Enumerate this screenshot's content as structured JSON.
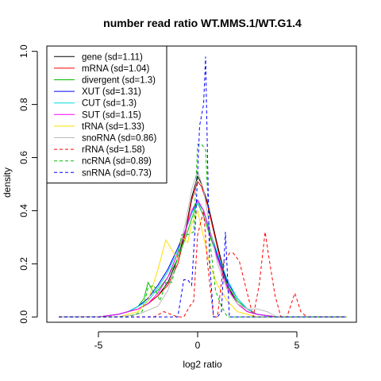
{
  "chart_data": {
    "type": "line",
    "title": "number read ratio WT.MMS.1/WT.G1.4",
    "xlabel": "log2 ratio",
    "ylabel": "density",
    "xlim": [
      -7.6,
      8.0
    ],
    "ylim": [
      -0.02,
      1.02
    ],
    "xticks": [
      -5,
      0,
      5
    ],
    "xtick_labels": [
      "-5",
      "0",
      "5"
    ],
    "yticks": [
      0.0,
      0.2,
      0.4,
      0.6,
      0.8,
      1.0
    ],
    "ytick_labels": [
      "0.0",
      "0.2",
      "0.4",
      "0.6",
      "0.8",
      "1.0"
    ],
    "grid": false,
    "legend_position": "top-left",
    "series": [
      {
        "name": "gene (sd=1.11)",
        "color": "#000000",
        "dash": false,
        "x": [
          -7.0,
          -6.0,
          -5.0,
          -4.0,
          -3.5,
          -3.0,
          -2.5,
          -2.0,
          -1.5,
          -1.0,
          -0.6,
          -0.3,
          0.0,
          0.2,
          0.5,
          1.0,
          1.5,
          2.0,
          2.5,
          3.0,
          4.0,
          5.0,
          6.0,
          7.5
        ],
        "y": [
          0.0,
          0.0,
          0.0,
          0.01,
          0.02,
          0.03,
          0.05,
          0.08,
          0.13,
          0.22,
          0.33,
          0.45,
          0.53,
          0.5,
          0.43,
          0.27,
          0.12,
          0.05,
          0.02,
          0.01,
          0.0,
          0.0,
          0.0,
          0.0
        ]
      },
      {
        "name": "mRNA (sd=1.04)",
        "color": "#ff0000",
        "dash": false,
        "x": [
          -7.0,
          -6.0,
          -5.0,
          -4.0,
          -3.5,
          -3.0,
          -2.5,
          -2.0,
          -1.5,
          -1.0,
          -0.6,
          -0.3,
          0.0,
          0.2,
          0.5,
          1.0,
          1.5,
          2.0,
          2.5,
          3.0,
          4.0,
          5.0,
          6.0,
          7.5
        ],
        "y": [
          0.0,
          0.0,
          0.0,
          0.01,
          0.02,
          0.03,
          0.05,
          0.08,
          0.12,
          0.2,
          0.32,
          0.44,
          0.51,
          0.49,
          0.42,
          0.26,
          0.11,
          0.05,
          0.02,
          0.01,
          0.0,
          0.0,
          0.0,
          0.0
        ]
      },
      {
        "name": "divergent (sd=1.3)",
        "color": "#00bb00",
        "dash": false,
        "x": [
          -7.0,
          -5.0,
          -4.0,
          -3.5,
          -3.0,
          -2.7,
          -2.5,
          -2.2,
          -2.0,
          -1.5,
          -1.0,
          -0.6,
          -0.3,
          0.0,
          0.3,
          0.6,
          1.0,
          1.5,
          2.0,
          2.5,
          3.0,
          4.0,
          5.0,
          7.5
        ],
        "y": [
          0.0,
          0.0,
          0.01,
          0.02,
          0.04,
          0.07,
          0.13,
          0.09,
          0.1,
          0.15,
          0.22,
          0.3,
          0.37,
          0.43,
          0.38,
          0.31,
          0.22,
          0.12,
          0.06,
          0.03,
          0.01,
          0.0,
          0.0,
          0.0
        ]
      },
      {
        "name": "XUT (sd=1.31)",
        "color": "#0000ff",
        "dash": false,
        "x": [
          -7.0,
          -5.0,
          -4.0,
          -3.5,
          -3.0,
          -2.5,
          -2.0,
          -1.5,
          -1.0,
          -0.6,
          -0.3,
          0.0,
          0.3,
          0.6,
          1.0,
          1.5,
          2.0,
          2.5,
          3.0,
          4.0,
          5.0,
          7.5
        ],
        "y": [
          0.0,
          0.0,
          0.01,
          0.02,
          0.04,
          0.07,
          0.12,
          0.18,
          0.26,
          0.33,
          0.39,
          0.44,
          0.4,
          0.33,
          0.23,
          0.13,
          0.07,
          0.03,
          0.01,
          0.0,
          0.0,
          0.0
        ]
      },
      {
        "name": "CUT (sd=1.3)",
        "color": "#00dddd",
        "dash": false,
        "x": [
          -7.0,
          -5.0,
          -4.0,
          -3.5,
          -3.0,
          -2.5,
          -2.0,
          -1.5,
          -1.0,
          -0.6,
          -0.3,
          0.0,
          0.3,
          0.6,
          1.0,
          1.5,
          2.0,
          2.5,
          3.0,
          4.0,
          5.0,
          7.5
        ],
        "y": [
          0.0,
          0.0,
          0.01,
          0.02,
          0.04,
          0.06,
          0.11,
          0.17,
          0.25,
          0.33,
          0.39,
          0.43,
          0.4,
          0.33,
          0.24,
          0.14,
          0.07,
          0.03,
          0.01,
          0.0,
          0.0,
          0.0
        ]
      },
      {
        "name": "SUT (sd=1.15)",
        "color": "#ff00ff",
        "dash": false,
        "x": [
          -7.0,
          -5.0,
          -4.0,
          -3.5,
          -3.0,
          -2.5,
          -2.0,
          -1.5,
          -1.0,
          -0.6,
          -0.3,
          0.0,
          0.3,
          0.6,
          1.0,
          1.5,
          2.0,
          2.5,
          3.0,
          4.0,
          5.0,
          7.5
        ],
        "y": [
          0.0,
          0.0,
          0.01,
          0.02,
          0.03,
          0.05,
          0.09,
          0.15,
          0.24,
          0.33,
          0.4,
          0.44,
          0.4,
          0.32,
          0.22,
          0.11,
          0.05,
          0.02,
          0.01,
          0.0,
          0.0,
          0.0
        ]
      },
      {
        "name": "tRNA (sd=1.33)",
        "color": "#ffdd00",
        "dash": false,
        "x": [
          -7.0,
          -4.0,
          -3.0,
          -2.5,
          -2.0,
          -1.6,
          -1.2,
          -1.0,
          -0.8,
          -0.5,
          -0.3,
          0.0,
          0.3,
          0.6,
          1.0,
          1.5,
          2.0,
          2.5,
          3.0,
          7.5
        ],
        "y": [
          0.0,
          0.0,
          0.02,
          0.06,
          0.18,
          0.29,
          0.24,
          0.22,
          0.3,
          0.28,
          0.35,
          0.4,
          0.3,
          0.2,
          0.12,
          0.06,
          0.02,
          0.01,
          0.0,
          0.0
        ]
      },
      {
        "name": "snoRNA (sd=0.86)",
        "color": "#bbbbbb",
        "dash": false,
        "x": [
          -7.0,
          -4.0,
          -3.0,
          -2.0,
          -1.5,
          -1.0,
          -0.6,
          -0.3,
          0.0,
          0.3,
          0.6,
          1.0,
          1.5,
          2.0,
          2.5,
          3.0,
          3.5,
          4.0,
          7.5
        ],
        "y": [
          0.0,
          0.0,
          0.01,
          0.04,
          0.1,
          0.22,
          0.36,
          0.48,
          0.55,
          0.48,
          0.34,
          0.2,
          0.1,
          0.05,
          0.03,
          0.03,
          0.02,
          0.0,
          0.0
        ]
      },
      {
        "name": "rRNA (sd=1.58)",
        "color": "#ff0000",
        "dash": true,
        "x": [
          -7.0,
          -2.2,
          -1.7,
          -1.0,
          -0.7,
          -0.4,
          -0.2,
          0.0,
          0.3,
          0.5,
          0.8,
          1.0,
          1.3,
          1.6,
          1.8,
          2.1,
          2.4,
          2.8,
          3.1,
          3.4,
          3.6,
          3.9,
          4.2,
          4.5,
          4.9,
          5.2,
          5.5,
          7.5
        ],
        "y": [
          0.0,
          0.0,
          0.02,
          0.0,
          0.0,
          0.04,
          0.06,
          0.31,
          0.4,
          0.2,
          0.0,
          0.0,
          0.2,
          0.24,
          0.24,
          0.21,
          0.12,
          0.0,
          0.12,
          0.32,
          0.22,
          0.08,
          0.0,
          0.0,
          0.09,
          0.02,
          0.0,
          0.0
        ]
      },
      {
        "name": "ncRNA (sd=0.89)",
        "color": "#00bb00",
        "dash": true,
        "x": [
          -7.0,
          -3.5,
          -2.8,
          -2.5,
          -2.2,
          -1.9,
          -1.6,
          -1.3,
          -1.0,
          -0.8,
          -0.5,
          -0.2,
          0.0,
          0.2,
          0.4,
          0.6,
          0.9,
          1.2,
          1.5,
          1.7,
          2.0,
          7.5
        ],
        "y": [
          0.0,
          0.0,
          0.02,
          0.11,
          0.12,
          0.06,
          0.13,
          0.13,
          0.23,
          0.31,
          0.31,
          0.32,
          0.65,
          0.65,
          0.63,
          0.3,
          0.1,
          0.04,
          0.0,
          0.0,
          0.0,
          0.0
        ]
      },
      {
        "name": "snRNA (sd=0.73)",
        "color": "#0000ff",
        "dash": true,
        "x": [
          -7.0,
          -1.0,
          -0.7,
          -0.5,
          -0.3,
          -0.1,
          0.1,
          0.3,
          0.4,
          0.6,
          0.8,
          1.0,
          1.2,
          1.4,
          1.6,
          7.5
        ],
        "y": [
          0.0,
          0.0,
          0.14,
          0.14,
          0.12,
          0.37,
          0.72,
          0.8,
          0.98,
          0.21,
          0.0,
          0.0,
          0.02,
          0.32,
          0.0,
          0.0
        ]
      }
    ]
  }
}
